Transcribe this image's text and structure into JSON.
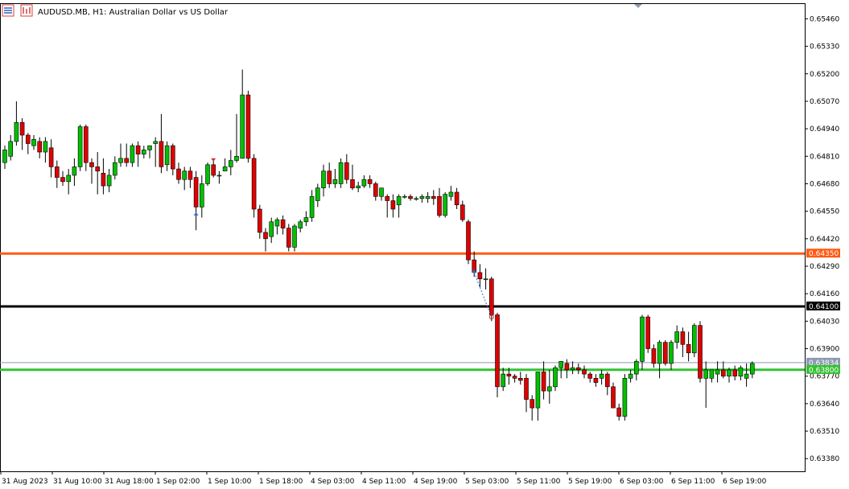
{
  "header": {
    "symbol": "AUDUSD.MB",
    "timeframe": "H1",
    "title": "AUDUSD.MB, H1:  Australian Dollar vs US Dollar"
  },
  "colors": {
    "bull": "#00c000",
    "bear": "#e00000",
    "frame": "#000000",
    "background": "#ffffff",
    "level_orange": "#ff5a14",
    "level_black": "#000000",
    "level_green": "#33c233",
    "bid_line": "#8c9bb0"
  },
  "chart_data": {
    "type": "candlestick",
    "title": "AUDUSD.MB, H1:  Australian Dollar vs US Dollar",
    "ylim": [
      0.6332,
      0.6553
    ],
    "y_ticks": [
      "0.65460",
      "0.65330",
      "0.65200",
      "0.65070",
      "0.64940",
      "0.64810",
      "0.64680",
      "0.64550",
      "0.64420",
      "0.64290",
      "0.64160",
      "0.64030",
      "0.63900",
      "0.63770",
      "0.63640",
      "0.63510",
      "0.63380"
    ],
    "x_ticks": [
      "31 Aug 2023",
      "31 Aug 10:00",
      "31 Aug 18:00",
      "1 Sep 02:00",
      "1 Sep 10:00",
      "1 Sep 18:00",
      "4 Sep 03:00",
      "4 Sep 11:00",
      "4 Sep 19:00",
      "5 Sep 03:00",
      "5 Sep 11:00",
      "5 Sep 19:00",
      "6 Sep 03:00",
      "6 Sep 11:00",
      "6 Sep 19:00"
    ],
    "grid": false,
    "horizontal_levels": [
      {
        "price": 0.6435,
        "label": "0.64350",
        "color": "#ff5a14"
      },
      {
        "price": 0.641,
        "label": "0.64100",
        "color": "#000000"
      },
      {
        "price": 0.63834,
        "label": "0.63834",
        "color": "#8c9bb0"
      },
      {
        "price": 0.638,
        "label": "0.63800",
        "color": "#33c233"
      }
    ],
    "candles": [
      [
        0.6478,
        0.6486,
        0.6475,
        0.6484
      ],
      [
        0.6481,
        0.6491,
        0.6479,
        0.6488
      ],
      [
        0.6488,
        0.6507,
        0.6486,
        0.6497
      ],
      [
        0.6497,
        0.6499,
        0.6484,
        0.6491
      ],
      [
        0.6491,
        0.6492,
        0.6482,
        0.6487
      ],
      [
        0.6486,
        0.6491,
        0.6484,
        0.6489
      ],
      [
        0.6488,
        0.649,
        0.648,
        0.6483
      ],
      [
        0.6483,
        0.649,
        0.6478,
        0.6488
      ],
      [
        0.6485,
        0.6489,
        0.6471,
        0.6476
      ],
      [
        0.6476,
        0.6479,
        0.6466,
        0.6471
      ],
      [
        0.6471,
        0.6474,
        0.6467,
        0.6469
      ],
      [
        0.6469,
        0.6475,
        0.6463,
        0.6472
      ],
      [
        0.6472,
        0.648,
        0.6467,
        0.6476
      ],
      [
        0.6476,
        0.6496,
        0.6474,
        0.6495
      ],
      [
        0.6495,
        0.6496,
        0.6474,
        0.6478
      ],
      [
        0.6478,
        0.648,
        0.6468,
        0.6476
      ],
      [
        0.6476,
        0.6483,
        0.6463,
        0.6474
      ],
      [
        0.6473,
        0.648,
        0.6463,
        0.6467
      ],
      [
        0.6467,
        0.6475,
        0.6464,
        0.6472
      ],
      [
        0.6472,
        0.6481,
        0.647,
        0.6478
      ],
      [
        0.6478,
        0.6487,
        0.6476,
        0.648
      ],
      [
        0.648,
        0.6487,
        0.6476,
        0.6478
      ],
      [
        0.6478,
        0.6487,
        0.6476,
        0.6486
      ],
      [
        0.6486,
        0.6488,
        0.6476,
        0.6482
      ],
      [
        0.6482,
        0.6486,
        0.648,
        0.6484
      ],
      [
        0.6484,
        0.6486,
        0.648,
        0.6486
      ],
      [
        0.6487,
        0.649,
        0.6476,
        0.6488
      ],
      [
        0.6488,
        0.6501,
        0.6473,
        0.6476
      ],
      [
        0.6477,
        0.6488,
        0.6474,
        0.6486
      ],
      [
        0.6486,
        0.6487,
        0.6472,
        0.6475
      ],
      [
        0.6475,
        0.6478,
        0.6468,
        0.647
      ],
      [
        0.647,
        0.6476,
        0.6465,
        0.6474
      ],
      [
        0.6474,
        0.6476,
        0.6466,
        0.647
      ],
      [
        0.6471,
        0.6474,
        0.6446,
        0.6457
      ],
      [
        0.6457,
        0.6472,
        0.6452,
        0.6468
      ],
      [
        0.6468,
        0.6478,
        0.6467,
        0.6477
      ],
      [
        0.6477,
        0.648,
        0.6471,
        0.6472
      ],
      [
        0.6472,
        0.6474,
        0.6468,
        0.6472
      ],
      [
        0.6474,
        0.648,
        0.6474,
        0.6476
      ],
      [
        0.6476,
        0.6484,
        0.6472,
        0.6479
      ],
      [
        0.6479,
        0.6501,
        0.6478,
        0.6481
      ],
      [
        0.648,
        0.6522,
        0.648,
        0.651
      ],
      [
        0.651,
        0.6512,
        0.6478,
        0.648
      ],
      [
        0.648,
        0.6482,
        0.6452,
        0.6456
      ],
      [
        0.6456,
        0.6458,
        0.6442,
        0.6445
      ],
      [
        0.6445,
        0.6447,
        0.6436,
        0.6442
      ],
      [
        0.6443,
        0.6452,
        0.644,
        0.645
      ],
      [
        0.6448,
        0.6452,
        0.6444,
        0.6451
      ],
      [
        0.6451,
        0.6453,
        0.6444,
        0.6447
      ],
      [
        0.6447,
        0.6449,
        0.6436,
        0.6438
      ],
      [
        0.6438,
        0.6449,
        0.6436,
        0.6448
      ],
      [
        0.6447,
        0.6451,
        0.6445,
        0.645
      ],
      [
        0.645,
        0.6455,
        0.6448,
        0.6452
      ],
      [
        0.6452,
        0.6465,
        0.645,
        0.6462
      ],
      [
        0.646,
        0.6468,
        0.6457,
        0.6466
      ],
      [
        0.6466,
        0.6477,
        0.6462,
        0.6474
      ],
      [
        0.6474,
        0.6478,
        0.6466,
        0.6468
      ],
      [
        0.6468,
        0.6475,
        0.6466,
        0.647
      ],
      [
        0.6468,
        0.648,
        0.6466,
        0.6478
      ],
      [
        0.6478,
        0.6482,
        0.6468,
        0.647
      ],
      [
        0.647,
        0.6477,
        0.6465,
        0.6466
      ],
      [
        0.6466,
        0.6469,
        0.6464,
        0.6467
      ],
      [
        0.6467,
        0.6472,
        0.6466,
        0.647
      ],
      [
        0.647,
        0.6472,
        0.6466,
        0.6468
      ],
      [
        0.6468,
        0.6469,
        0.646,
        0.6462
      ],
      [
        0.6462,
        0.6466,
        0.646,
        0.6466
      ],
      [
        0.6462,
        0.6463,
        0.6452,
        0.646
      ],
      [
        0.646,
        0.6463,
        0.6452,
        0.6456
      ],
      [
        0.6458,
        0.6463,
        0.6452,
        0.6462
      ],
      [
        0.6462,
        0.6463,
        0.6461,
        0.6462
      ],
      [
        0.6462,
        0.6463,
        0.646,
        0.6461
      ],
      [
        0.6461,
        0.6462,
        0.646,
        0.6461
      ],
      [
        0.6461,
        0.6463,
        0.6459,
        0.6462
      ],
      [
        0.6461,
        0.6464,
        0.6459,
        0.6462
      ],
      [
        0.6462,
        0.6465,
        0.6458,
        0.6461
      ],
      [
        0.6462,
        0.6466,
        0.6452,
        0.6453
      ],
      [
        0.6453,
        0.6464,
        0.6452,
        0.6463
      ],
      [
        0.6462,
        0.6467,
        0.646,
        0.6464
      ],
      [
        0.6464,
        0.6466,
        0.6456,
        0.6458
      ],
      [
        0.6458,
        0.646,
        0.645,
        0.6451
      ],
      [
        0.645,
        0.6451,
        0.643,
        0.6432
      ],
      [
        0.6432,
        0.6436,
        0.6424,
        0.6426
      ],
      [
        0.6426,
        0.643,
        0.6419,
        0.6423
      ],
      [
        0.6423,
        0.6428,
        0.6418,
        0.6423
      ],
      [
        0.6423,
        0.6424,
        0.6403,
        0.6406
      ],
      [
        0.6406,
        0.6407,
        0.6367,
        0.6372
      ],
      [
        0.6372,
        0.6381,
        0.637,
        0.6378
      ],
      [
        0.6378,
        0.6381,
        0.6373,
        0.6377
      ],
      [
        0.6377,
        0.6378,
        0.6374,
        0.6376
      ],
      [
        0.6376,
        0.6379,
        0.6373,
        0.6375
      ],
      [
        0.6376,
        0.6378,
        0.636,
        0.6366
      ],
      [
        0.6366,
        0.6368,
        0.6356,
        0.6362
      ],
      [
        0.6362,
        0.6377,
        0.6356,
        0.6379
      ],
      [
        0.6379,
        0.6384,
        0.6366,
        0.637
      ],
      [
        0.637,
        0.638,
        0.6364,
        0.6372
      ],
      [
        0.6372,
        0.6382,
        0.637,
        0.6381
      ],
      [
        0.6381,
        0.6384,
        0.6376,
        0.6384
      ],
      [
        0.6383,
        0.6385,
        0.6376,
        0.638
      ],
      [
        0.638,
        0.6384,
        0.6378,
        0.6381
      ],
      [
        0.6381,
        0.6383,
        0.6378,
        0.638
      ],
      [
        0.638,
        0.6382,
        0.6376,
        0.6378
      ],
      [
        0.6378,
        0.6379,
        0.6374,
        0.6376
      ],
      [
        0.6376,
        0.6378,
        0.6372,
        0.6374
      ],
      [
        0.6376,
        0.638,
        0.6373,
        0.6378
      ],
      [
        0.6378,
        0.6379,
        0.6368,
        0.6372
      ],
      [
        0.6372,
        0.6374,
        0.6362,
        0.6362
      ],
      [
        0.6362,
        0.6364,
        0.6356,
        0.6358
      ],
      [
        0.6358,
        0.6378,
        0.6356,
        0.6376
      ],
      [
        0.6376,
        0.638,
        0.6374,
        0.6378
      ],
      [
        0.6378,
        0.6385,
        0.6375,
        0.6384
      ],
      [
        0.6384,
        0.6406,
        0.638,
        0.6405
      ],
      [
        0.6405,
        0.6406,
        0.6388,
        0.639
      ],
      [
        0.639,
        0.6392,
        0.6381,
        0.6383
      ],
      [
        0.6383,
        0.6394,
        0.6376,
        0.6393
      ],
      [
        0.6393,
        0.6394,
        0.6382,
        0.6383
      ],
      [
        0.6383,
        0.6394,
        0.638,
        0.6393
      ],
      [
        0.6393,
        0.6401,
        0.639,
        0.6398
      ],
      [
        0.6398,
        0.64,
        0.6386,
        0.6392
      ],
      [
        0.6392,
        0.6398,
        0.6384,
        0.6388
      ],
      [
        0.6388,
        0.6402,
        0.6386,
        0.6401
      ],
      [
        0.6401,
        0.6403,
        0.6374,
        0.6376
      ],
      [
        0.6376,
        0.6384,
        0.6362,
        0.638
      ],
      [
        0.6376,
        0.638,
        0.6374,
        0.638
      ],
      [
        0.6378,
        0.6384,
        0.6374,
        0.638
      ],
      [
        0.638,
        0.6384,
        0.6376,
        0.6377
      ],
      [
        0.6377,
        0.6381,
        0.6374,
        0.638
      ],
      [
        0.638,
        0.6382,
        0.6375,
        0.6377
      ],
      [
        0.6377,
        0.6382,
        0.6375,
        0.6381
      ],
      [
        0.6376,
        0.6383,
        0.6372,
        0.6378
      ],
      [
        0.6378,
        0.6384,
        0.6376,
        0.6383
      ]
    ]
  }
}
